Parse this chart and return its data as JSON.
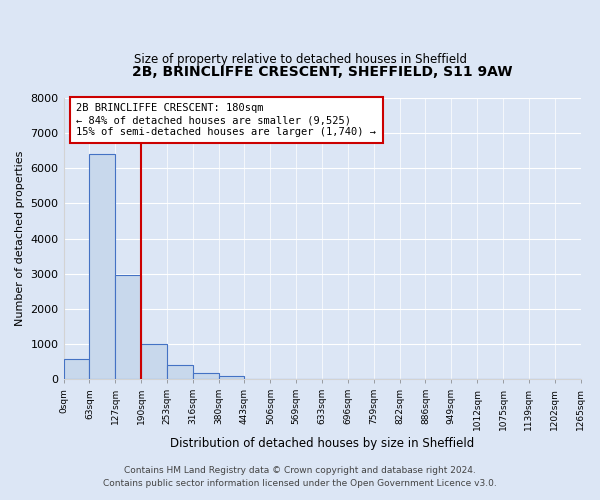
{
  "title": "2B, BRINCLIFFE CRESCENT, SHEFFIELD, S11 9AW",
  "subtitle": "Size of property relative to detached houses in Sheffield",
  "xlabel": "Distribution of detached houses by size in Sheffield",
  "ylabel": "Number of detached properties",
  "bar_values": [
    560,
    6400,
    2950,
    1000,
    390,
    175,
    90,
    0,
    0,
    0,
    0,
    0,
    0,
    0,
    0,
    0,
    0,
    0,
    0,
    0
  ],
  "bin_labels": [
    "0sqm",
    "63sqm",
    "127sqm",
    "190sqm",
    "253sqm",
    "316sqm",
    "380sqm",
    "443sqm",
    "506sqm",
    "569sqm",
    "633sqm",
    "696sqm",
    "759sqm",
    "822sqm",
    "886sqm",
    "949sqm",
    "1012sqm",
    "1075sqm",
    "1139sqm",
    "1202sqm",
    "1265sqm"
  ],
  "bar_color": "#c8d8ec",
  "bar_edge_color": "#4472c4",
  "vline_x": 3,
  "vline_color": "#cc0000",
  "ylim": [
    0,
    8000
  ],
  "yticks": [
    0,
    1000,
    2000,
    3000,
    4000,
    5000,
    6000,
    7000,
    8000
  ],
  "annotation_text": "2B BRINCLIFFE CRESCENT: 180sqm\n← 84% of detached houses are smaller (9,525)\n15% of semi-detached houses are larger (1,740) →",
  "annotation_box_color": "#ffffff",
  "annotation_box_edge": "#cc0000",
  "footer_line1": "Contains HM Land Registry data © Crown copyright and database right 2024.",
  "footer_line2": "Contains public sector information licensed under the Open Government Licence v3.0.",
  "background_color": "#dce6f5",
  "plot_bg_color": "#dce6f5"
}
